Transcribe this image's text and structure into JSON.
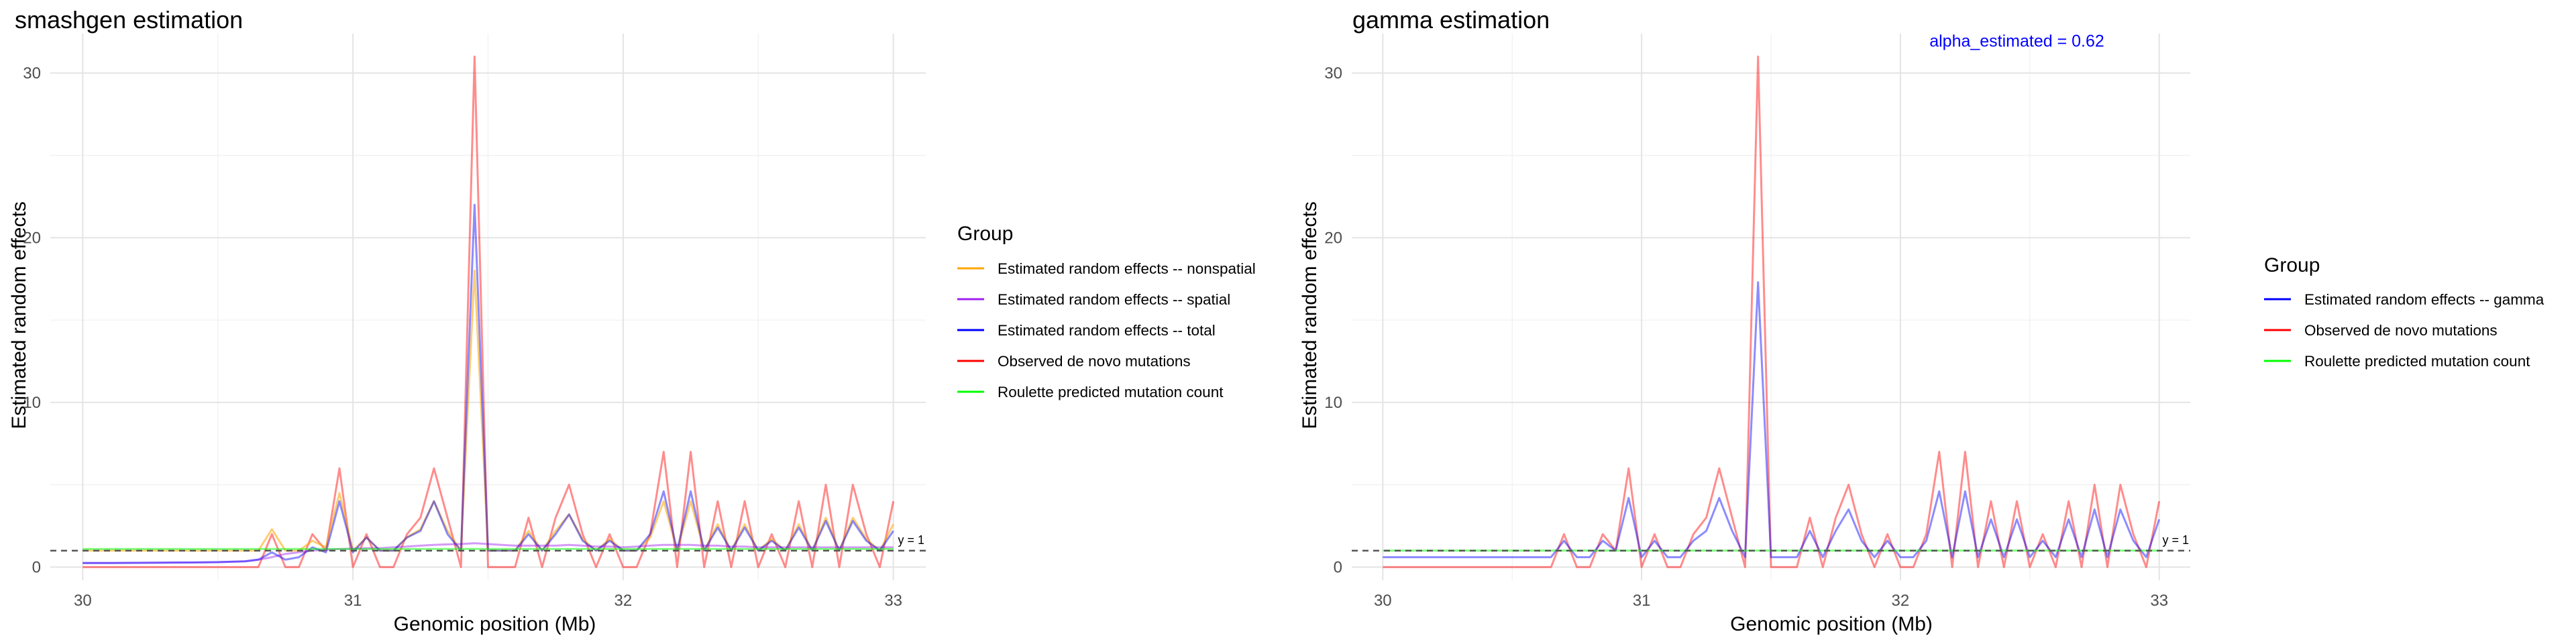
{
  "chart_data": [
    {
      "type": "line",
      "title": "smashgen estimation",
      "xlabel": "Genomic position (Mb)",
      "ylabel": "Estimated random effects",
      "xlim": [
        29.88,
        33.12
      ],
      "ylim": [
        -0.8,
        32.4
      ],
      "x_ticks": [
        30,
        31,
        32,
        33
      ],
      "y_ticks": [
        0,
        10,
        20,
        30
      ],
      "grid": true,
      "reference_line": {
        "y": 1,
        "label": "y = 1",
        "style": "dashed"
      },
      "legend": {
        "title": "Group",
        "placement": "right",
        "entries": [
          {
            "label": "Estimated random effects -- nonspatial",
            "color": "#FFA500"
          },
          {
            "label": "Estimated random effects -- spatial",
            "color": "#A020F0"
          },
          {
            "label": "Estimated random effects -- total",
            "color": "#0000FF"
          },
          {
            "label": "Observed de novo mutations",
            "color": "#FF0000"
          },
          {
            "label": "Roulette predicted mutation count",
            "color": "#00FF00"
          }
        ]
      },
      "x": [
        30.0,
        30.1,
        30.2,
        30.3,
        30.4,
        30.5,
        30.6,
        30.65,
        30.7,
        30.75,
        30.8,
        30.85,
        30.9,
        30.95,
        31.0,
        31.05,
        31.1,
        31.15,
        31.2,
        31.25,
        31.3,
        31.35,
        31.4,
        31.45,
        31.5,
        31.55,
        31.6,
        31.65,
        31.7,
        31.75,
        31.8,
        31.85,
        31.9,
        31.95,
        32.0,
        32.05,
        32.1,
        32.15,
        32.2,
        32.25,
        32.3,
        32.35,
        32.4,
        32.45,
        32.5,
        32.55,
        32.6,
        32.65,
        32.7,
        32.75,
        32.8,
        32.85,
        32.9,
        32.95,
        33.0
      ],
      "series": [
        {
          "name": "Observed de novo mutations",
          "color": "#FF0000",
          "opacity": 0.45,
          "values": [
            0,
            0,
            0,
            0,
            0,
            0,
            0,
            0,
            2,
            0,
            0,
            2,
            1,
            6,
            0,
            2,
            0,
            0,
            2,
            3,
            6,
            3,
            0,
            31,
            0,
            0,
            0,
            3,
            0,
            3,
            5,
            2,
            0,
            2,
            0,
            0,
            2,
            7,
            0,
            7,
            0,
            4,
            0,
            4,
            0,
            2,
            0,
            4,
            0,
            5,
            0,
            5,
            2,
            0,
            4
          ]
        },
        {
          "name": "Estimated random effects -- nonspatial",
          "color": "#FFA500",
          "opacity": 0.55,
          "values": [
            1,
            1,
            1,
            1,
            1,
            1,
            1,
            1,
            2.3,
            1,
            1,
            1.6,
            1.2,
            4.5,
            1,
            1.8,
            1,
            1,
            1.8,
            2.3,
            4,
            2.2,
            1,
            18,
            1,
            1,
            1,
            2.2,
            1,
            2.2,
            3.2,
            1.7,
            1,
            1.7,
            1,
            1,
            1.8,
            4,
            1,
            4,
            1,
            2.6,
            1,
            2.6,
            1,
            1.7,
            1,
            2.6,
            1,
            3,
            1,
            3,
            1.7,
            1,
            2.6
          ]
        },
        {
          "name": "Estimated random effects -- spatial",
          "color": "#A020F0",
          "opacity": 0.45,
          "values": [
            0.25,
            0.25,
            0.26,
            0.27,
            0.28,
            0.3,
            0.35,
            0.45,
            0.6,
            0.8,
            0.9,
            1.0,
            1.05,
            1.1,
            1.12,
            1.15,
            1.15,
            1.2,
            1.25,
            1.3,
            1.35,
            1.38,
            1.4,
            1.45,
            1.4,
            1.35,
            1.3,
            1.3,
            1.3,
            1.3,
            1.35,
            1.3,
            1.25,
            1.25,
            1.2,
            1.25,
            1.3,
            1.35,
            1.35,
            1.35,
            1.3,
            1.3,
            1.25,
            1.25,
            1.2,
            1.2,
            1.2,
            1.2,
            1.2,
            1.2,
            1.2,
            1.2,
            1.2,
            1.2,
            1.2
          ]
        },
        {
          "name": "Estimated random effects -- total",
          "color": "#0000FF",
          "opacity": 0.45,
          "values": [
            0.25,
            0.25,
            0.26,
            0.27,
            0.28,
            0.3,
            0.35,
            0.45,
            0.9,
            0.45,
            0.6,
            1.2,
            0.9,
            4,
            0.9,
            1.8,
            1,
            1,
            1.8,
            2.2,
            4,
            2,
            1,
            22,
            1,
            1,
            1,
            2,
            1,
            2,
            3.2,
            1.6,
            1,
            1.6,
            1,
            1,
            2,
            4.6,
            1,
            4.6,
            1,
            2.4,
            1,
            2.4,
            1,
            1.6,
            1,
            2.4,
            1,
            2.8,
            1,
            2.8,
            1.6,
            1,
            2.2
          ]
        },
        {
          "name": "Roulette predicted mutation count",
          "color": "#00FF00",
          "opacity": 0.5,
          "values": [
            1.1,
            1.1,
            1.1,
            1.1,
            1.1,
            1.1,
            1.1,
            1.1,
            1.1,
            1.1,
            1.1,
            1.1,
            1.1,
            1.1,
            1.1,
            1.1,
            1.1,
            1.1,
            1.1,
            1.1,
            1.1,
            1.1,
            1.1,
            1.1,
            1.1,
            1.1,
            1.1,
            1.1,
            1.1,
            1.1,
            1.1,
            1.1,
            1.1,
            1.1,
            1.1,
            1.1,
            1.1,
            1.1,
            1.1,
            1.1,
            1.1,
            1.1,
            1.1,
            1.1,
            1.1,
            1.1,
            1.1,
            1.1,
            1.1,
            1.1,
            1.1,
            1.1,
            1.1,
            1.1,
            1.1
          ]
        }
      ]
    },
    {
      "type": "line",
      "title": "gamma estimation",
      "xlabel": "Genomic position (Mb)",
      "ylabel": "Estimated random effects",
      "xlim": [
        29.88,
        33.12
      ],
      "ylim": [
        -0.8,
        32.4
      ],
      "x_ticks": [
        30,
        31,
        32,
        33
      ],
      "y_ticks": [
        0,
        10,
        20,
        30
      ],
      "grid": true,
      "annotation": {
        "text": "alpha_estimated = 0.62",
        "color": "#0000FF",
        "x": 32.45,
        "y": 31.6
      },
      "reference_line": {
        "y": 1,
        "label": "y = 1",
        "style": "dashed"
      },
      "legend": {
        "title": "Group",
        "placement": "right",
        "entries": [
          {
            "label": "Estimated random effects -- gamma",
            "color": "#0000FF"
          },
          {
            "label": "Observed de novo mutations",
            "color": "#FF0000"
          },
          {
            "label": "Roulette predicted mutation count",
            "color": "#00FF00"
          }
        ]
      },
      "x": [
        30.0,
        30.1,
        30.2,
        30.3,
        30.4,
        30.5,
        30.6,
        30.65,
        30.7,
        30.75,
        30.8,
        30.85,
        30.9,
        30.95,
        31.0,
        31.05,
        31.1,
        31.15,
        31.2,
        31.25,
        31.3,
        31.35,
        31.4,
        31.45,
        31.5,
        31.55,
        31.6,
        31.65,
        31.7,
        31.75,
        31.8,
        31.85,
        31.9,
        31.95,
        32.0,
        32.05,
        32.1,
        32.15,
        32.2,
        32.25,
        32.3,
        32.35,
        32.4,
        32.45,
        32.5,
        32.55,
        32.6,
        32.65,
        32.7,
        32.75,
        32.8,
        32.85,
        32.9,
        32.95,
        33.0
      ],
      "series": [
        {
          "name": "Observed de novo mutations",
          "color": "#FF0000",
          "opacity": 0.45,
          "values": [
            0,
            0,
            0,
            0,
            0,
            0,
            0,
            0,
            2,
            0,
            0,
            2,
            1,
            6,
            0,
            2,
            0,
            0,
            2,
            3,
            6,
            3,
            0,
            31,
            0,
            0,
            0,
            3,
            0,
            3,
            5,
            2,
            0,
            2,
            0,
            0,
            2,
            7,
            0,
            7,
            0,
            4,
            0,
            4,
            0,
            2,
            0,
            4,
            0,
            5,
            0,
            5,
            2,
            0,
            4
          ]
        },
        {
          "name": "Estimated random effects -- gamma",
          "color": "#0000FF",
          "opacity": 0.45,
          "values": [
            0.6,
            0.6,
            0.6,
            0.6,
            0.6,
            0.6,
            0.6,
            0.6,
            1.6,
            0.6,
            0.6,
            1.6,
            1.0,
            4.2,
            0.6,
            1.6,
            0.6,
            0.6,
            1.6,
            2.2,
            4.2,
            2.2,
            0.6,
            17.3,
            0.6,
            0.6,
            0.6,
            2.2,
            0.6,
            2.2,
            3.5,
            1.6,
            0.6,
            1.6,
            0.6,
            0.6,
            1.6,
            4.6,
            0.6,
            4.6,
            0.6,
            2.9,
            0.6,
            2.9,
            0.6,
            1.6,
            0.6,
            2.9,
            0.6,
            3.5,
            0.6,
            3.5,
            1.6,
            0.6,
            2.9
          ]
        },
        {
          "name": "Roulette predicted mutation count",
          "color": "#00FF00",
          "opacity": 0.5,
          "values": [
            1.0,
            1.0,
            1.0,
            1.0,
            1.0,
            1.0,
            1.0,
            1.0,
            1.0,
            1.0,
            1.0,
            1.0,
            1.0,
            1.0,
            1.0,
            1.0,
            1.0,
            1.0,
            1.0,
            1.0,
            1.0,
            1.0,
            1.0,
            1.0,
            1.0,
            1.0,
            1.0,
            1.0,
            1.0,
            1.0,
            1.0,
            1.0,
            1.0,
            1.0,
            1.0,
            1.0,
            1.0,
            1.0,
            1.0,
            1.0,
            1.0,
            1.0,
            1.0,
            1.0,
            1.0,
            1.0,
            1.0,
            1.0,
            1.0,
            1.0,
            1.0,
            1.0,
            1.0,
            1.0,
            1.0
          ]
        }
      ]
    }
  ]
}
